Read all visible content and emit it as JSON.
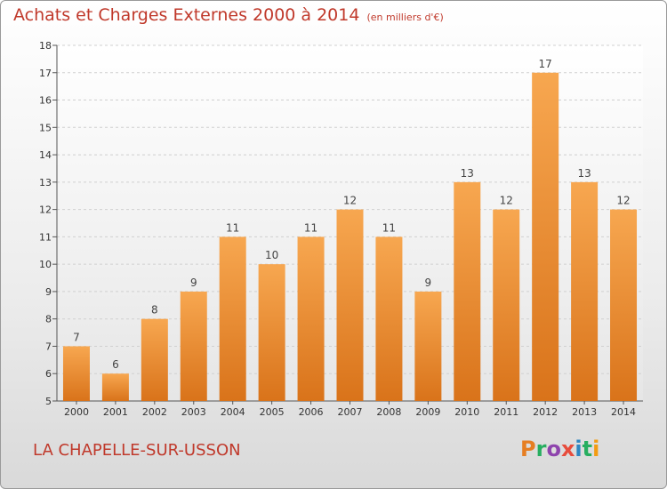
{
  "header": {
    "title": "Achats et Charges Externes 2000 à 2014",
    "subtitle": "(en milliers d'€)"
  },
  "footer": {
    "place": "LA CHAPELLE-SUR-USSON",
    "logo_text": "Proxiti",
    "logo_colors": [
      "#e67e22",
      "#27ae60",
      "#8e44ad",
      "#e74c3c",
      "#2e86c1",
      "#27ae60",
      "#f39c12"
    ]
  },
  "colors": {
    "bar_light": "#f7a750",
    "bar_dark": "#d9731a",
    "accent_text": "#c0392b"
  },
  "chart_data": {
    "type": "bar",
    "categories": [
      "2000",
      "2001",
      "2002",
      "2003",
      "2004",
      "2005",
      "2006",
      "2007",
      "2008",
      "2009",
      "2010",
      "2011",
      "2012",
      "2013",
      "2014"
    ],
    "values": [
      7,
      6,
      8,
      9,
      11,
      10,
      11,
      12,
      11,
      9,
      13,
      12,
      17,
      13,
      12
    ],
    "title": "Achats et Charges Externes 2000 à 2014",
    "ylim": [
      5,
      18
    ],
    "yticks": [
      5,
      6,
      7,
      8,
      9,
      10,
      11,
      12,
      13,
      14,
      15,
      16,
      17,
      18
    ],
    "grid": true,
    "data_labels": true
  }
}
